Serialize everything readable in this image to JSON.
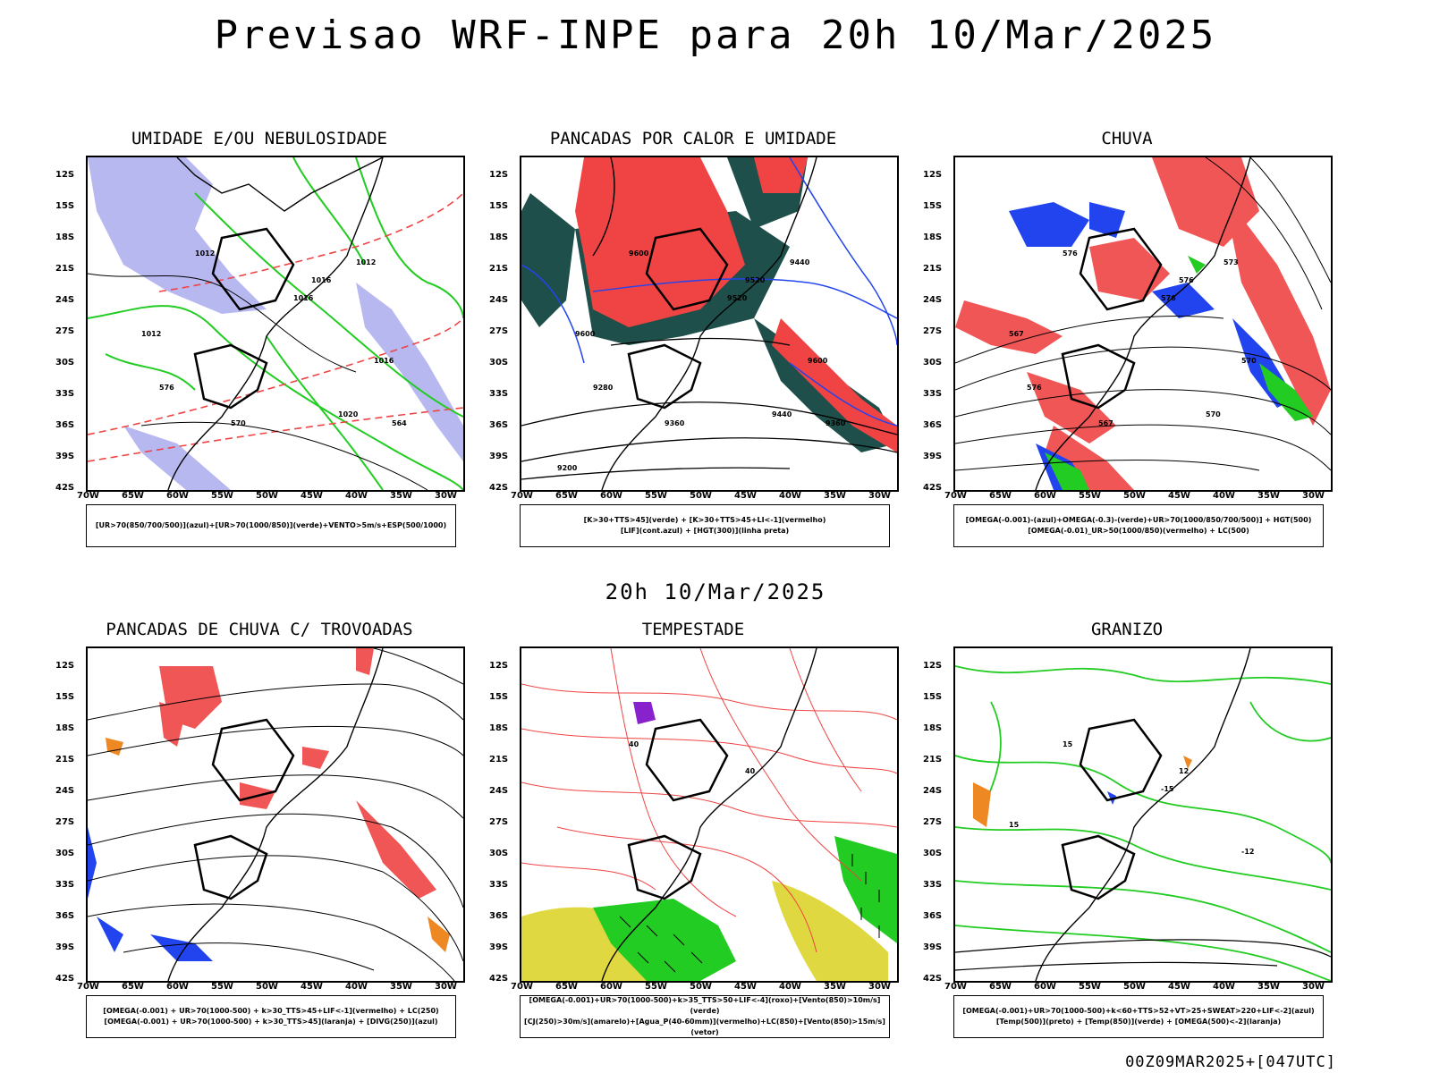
{
  "title": "Previsao WRF-INPE  para 20h 10/Mar/2025",
  "mid_time": "20h 10/Mar/2025",
  "footer": "00Z09MAR2025+[047UTC]",
  "lat_labels": [
    "12S",
    "15S",
    "18S",
    "21S",
    "24S",
    "27S",
    "30S",
    "33S",
    "36S",
    "39S",
    "42S"
  ],
  "lon_labels": [
    "70W",
    "65W",
    "60W",
    "55W",
    "50W",
    "45W",
    "40W",
    "35W",
    "30W"
  ],
  "colors": {
    "red": "#f04444",
    "blue": "#2244ee",
    "green": "#22cc22",
    "lavender": "#b0b0f0",
    "teal": "#1f4f4a",
    "yellow": "#e0d840",
    "orange": "#ee8822",
    "purple": "#8822cc"
  },
  "panels": [
    {
      "title": "UMIDADE E/OU NEBULOSIDADE",
      "legend": [
        "[UR>70(850/700/500)](azul)+[UR>70(1000/850)](verde)+VENTO>5m/s+ESP(500/1000)"
      ],
      "contour_labels": [
        "1012",
        "1016",
        "1016",
        "1012",
        "1016",
        "1012",
        "1020",
        "570",
        "576",
        "564"
      ]
    },
    {
      "title": "PANCADAS POR CALOR E UMIDADE",
      "legend": [
        "[K>30+TTS>45](verde) + [K>30+TTS>45+LI<-1](vermelho)",
        "[LIF](cont.azul) + [HGT(300)](linha preta)"
      ],
      "contour_labels": [
        "9600",
        "9520",
        "9600",
        "9600",
        "9520",
        "9440",
        "9440",
        "9360",
        "9280",
        "9360",
        "9200"
      ]
    },
    {
      "title": "CHUVA",
      "legend": [
        "[OMEGA(-0.001)-(azul)+OMEGA(-0.3)-(verde)+UR>70(1000/850/700/500)] + HGT(500)",
        "[OMEGA(-0.01)_UR>50(1000/850)(vermelho) + LC(500)"
      ],
      "contour_labels": [
        "576",
        "576",
        "570",
        "567",
        "576",
        "573",
        "570",
        "567",
        "576"
      ]
    },
    {
      "title": "PANCADAS DE CHUVA C/ TROVOADAS",
      "legend": [
        "[OMEGA(-0.001) + UR>70(1000-500) + k>30_TTS>45+LIF<-1](vermelho) + LC(250)",
        "[OMEGA(-0.001) + UR>70(1000-500) + k>30_TTS>45](laranja) + [DIVG(250)](azul)"
      ],
      "contour_labels": []
    },
    {
      "title": "TEMPESTADE",
      "legend": [
        "[OMEGA(-0.001)+UR>70(1000-500)+k>35_TTS>50+LIF<-4](roxo)+[Vento(850)>10m/s](verde)",
        "[CJ(250)>30m/s](amarelo)+[Agua_P(40-60mm)](vermelho)+LC(850)+[Vento(850)>15m/s](vetor)"
      ],
      "contour_labels": [
        "40",
        "40"
      ]
    },
    {
      "title": "GRANIZO",
      "legend": [
        "[OMEGA(-0.001)+UR>70(1000-500)+k<60+TTS>52+VT>25+SWEAT>220+LIF<-2](azul)",
        "[Temp(500)](preto) + [Temp(850)](verde) + [OMEGA(500)<-2](laranja)"
      ],
      "contour_labels": [
        "15",
        "12",
        "-12",
        "15",
        "-15"
      ]
    }
  ]
}
